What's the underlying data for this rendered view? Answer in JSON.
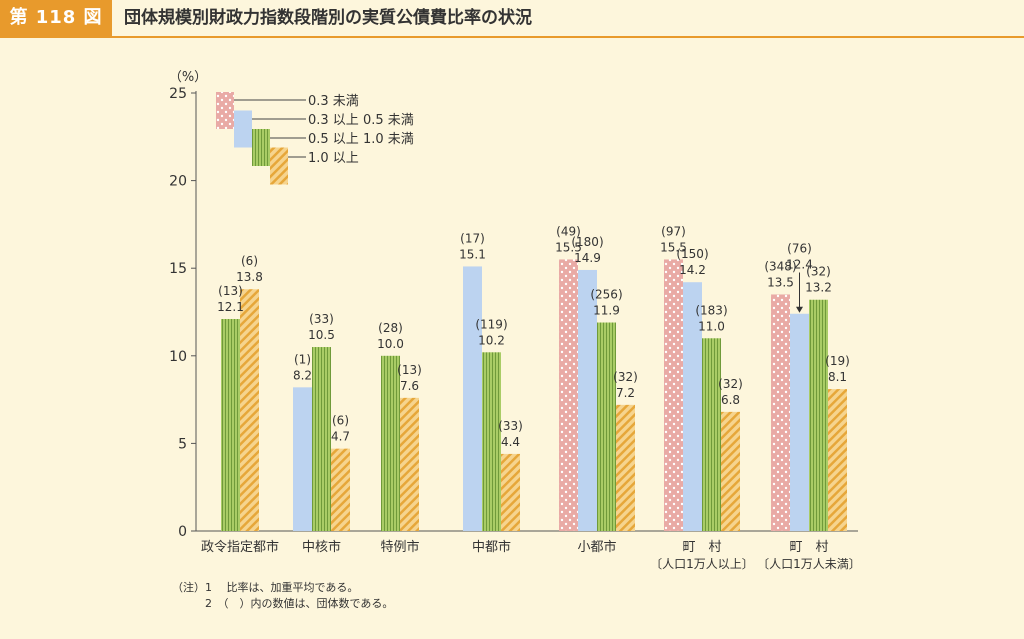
{
  "header": {
    "figure_label": "第 118 図",
    "title": "団体規模別財政力指数段階別の実質公債費比率の状況"
  },
  "chart_data": {
    "type": "bar",
    "yunit": "（%）",
    "ylim": [
      0,
      25
    ],
    "yticks": [
      "0",
      "5",
      "10",
      "15",
      "20",
      "25"
    ],
    "grid": false,
    "legend_position": "top-left",
    "categories": [
      {
        "name": "政令指定都市",
        "sub": ""
      },
      {
        "name": "中核市",
        "sub": ""
      },
      {
        "name": "特例市",
        "sub": ""
      },
      {
        "name": "中都市",
        "sub": ""
      },
      {
        "name": "小都市",
        "sub": ""
      },
      {
        "name": "町　村",
        "sub": "〔人口1万人以上〕"
      },
      {
        "name": "町　村",
        "sub": "〔人口1万人未満〕"
      }
    ],
    "series": [
      {
        "name": "0.3 未満",
        "pattern": "dots",
        "color": "#e7a9a4",
        "values": [
          null,
          null,
          null,
          null,
          15.5,
          15.5,
          13.5
        ],
        "labels": [
          null,
          null,
          null,
          null,
          "15.5",
          "15.5",
          "13.5"
        ],
        "counts": [
          null,
          null,
          null,
          null,
          "(49)",
          "(97)",
          "(348)"
        ]
      },
      {
        "name": "0.3 以上 0.5 未満",
        "pattern": "solid",
        "color": "#bcd3f0",
        "values": [
          null,
          8.2,
          null,
          15.1,
          14.9,
          14.2,
          12.4
        ],
        "labels": [
          null,
          "8.2",
          null,
          "15.1",
          "14.9",
          "14.2",
          "12.4"
        ],
        "counts": [
          null,
          "(1)",
          null,
          "(17)",
          "(180)",
          "(150)",
          "(76)"
        ]
      },
      {
        "name": "0.5 以上 1.0 未満",
        "pattern": "vstripes",
        "color": "#9dc35a",
        "values": [
          12.1,
          10.5,
          10.0,
          10.2,
          11.9,
          11.0,
          13.2
        ],
        "labels": [
          "12.1",
          "10.5",
          "10.0",
          "10.2",
          "11.9",
          "11.0",
          "13.2"
        ],
        "counts": [
          "(13)",
          "(33)",
          "(28)",
          "(119)",
          "(256)",
          "(183)",
          "(32)"
        ]
      },
      {
        "name": "1.0 以上",
        "pattern": "diag",
        "color": "#f0c36a",
        "values": [
          13.8,
          4.7,
          7.6,
          4.4,
          7.2,
          6.8,
          8.1
        ],
        "labels": [
          "13.8",
          "4.7",
          "7.6",
          "4.4",
          "7.2",
          "6.8",
          "8.1"
        ],
        "counts": [
          "(6)",
          "(6)",
          "(13)",
          "(33)",
          "(32)",
          "(32)",
          "(19)"
        ]
      }
    ]
  },
  "notes": [
    "（注）1　 比率は、加重平均である。",
    "　　　2　（　）内の数値は、団体数である。"
  ]
}
